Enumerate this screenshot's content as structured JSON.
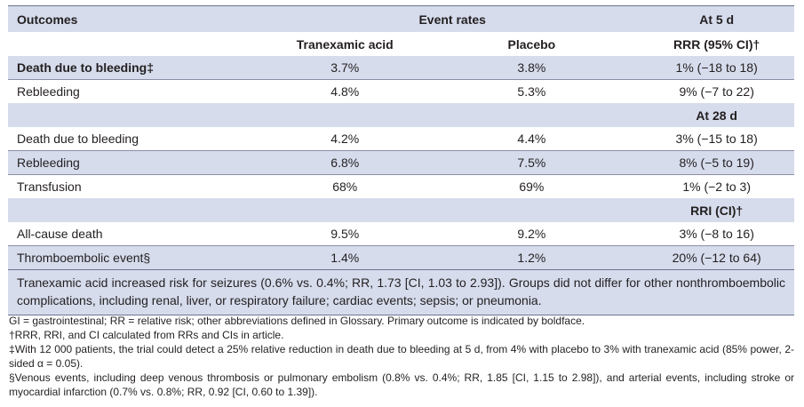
{
  "table": {
    "header": {
      "outcomes": "Outcomes",
      "event_rates": "Event rates",
      "at_day": "At 5 d"
    },
    "subheader": {
      "tranexamic": "Tranexamic acid",
      "placebo": "Placebo",
      "metric": "RRR (95% CI)†"
    },
    "rows5d": [
      {
        "outcome": "Death due to bleeding‡",
        "tranexamic": "3.7%",
        "placebo": "3.8%",
        "effect": "1% (−18 to 18)"
      },
      {
        "outcome": "Rebleeding",
        "tranexamic": "4.8%",
        "placebo": "5.3%",
        "effect": "9% (−7 to 22)"
      }
    ],
    "at28": "At 28 d",
    "rows28d": [
      {
        "outcome": "Death due to bleeding",
        "tranexamic": "4.2%",
        "placebo": "4.4%",
        "effect": "3% (−15 to 18)"
      },
      {
        "outcome": "Rebleeding",
        "tranexamic": "6.8%",
        "placebo": "7.5%",
        "effect": "8% (−5 to 19)"
      },
      {
        "outcome": "Transfusion",
        "tranexamic": "68%",
        "placebo": "69%",
        "effect": "1% (−2 to 3)"
      }
    ],
    "rri_header": "RRI (CI)†",
    "rows_rri": [
      {
        "outcome": "All-cause death",
        "tranexamic": "9.5%",
        "placebo": "9.2%",
        "effect": "3% (−8 to 16)"
      },
      {
        "outcome": "Thromboembolic event§",
        "tranexamic": "1.4%",
        "placebo": "1.2%",
        "effect": "20% (−12 to 64)"
      }
    ],
    "note": "Tranexamic acid increased risk for seizures (0.6% vs. 0.4%; RR, 1.73 [CI, 1.03 to 2.93]). Groups did not differ for other nonthromboembolic complications, including renal, liver, or respiratory failure; cardiac events; sepsis; or pneumonia."
  },
  "footnotes": [
    "GI = gastrointestinal; RR = relative risk; other abbreviations defined in Glossary. Primary outcome is indicated by boldface.",
    "†RRR, RRI, and CI calculated from RRs and CIs in article.",
    "‡With 12 000 patients, the trial could detect a 25% relative reduction in death due to bleeding at 5 d, from 4% with placebo to 3% with tranexamic acid (85% power, 2-sided α = 0.05).",
    "§Venous events, including deep venous thrombosis or pulmonary embolism (0.8% vs. 0.4%; RR, 1.85 [CI, 1.15 to 2.98]), and arterial events, including stroke or myocardial infarction (0.7% vs. 0.8%; RR, 0.92 [CI, 0.60 to 1.39])."
  ]
}
